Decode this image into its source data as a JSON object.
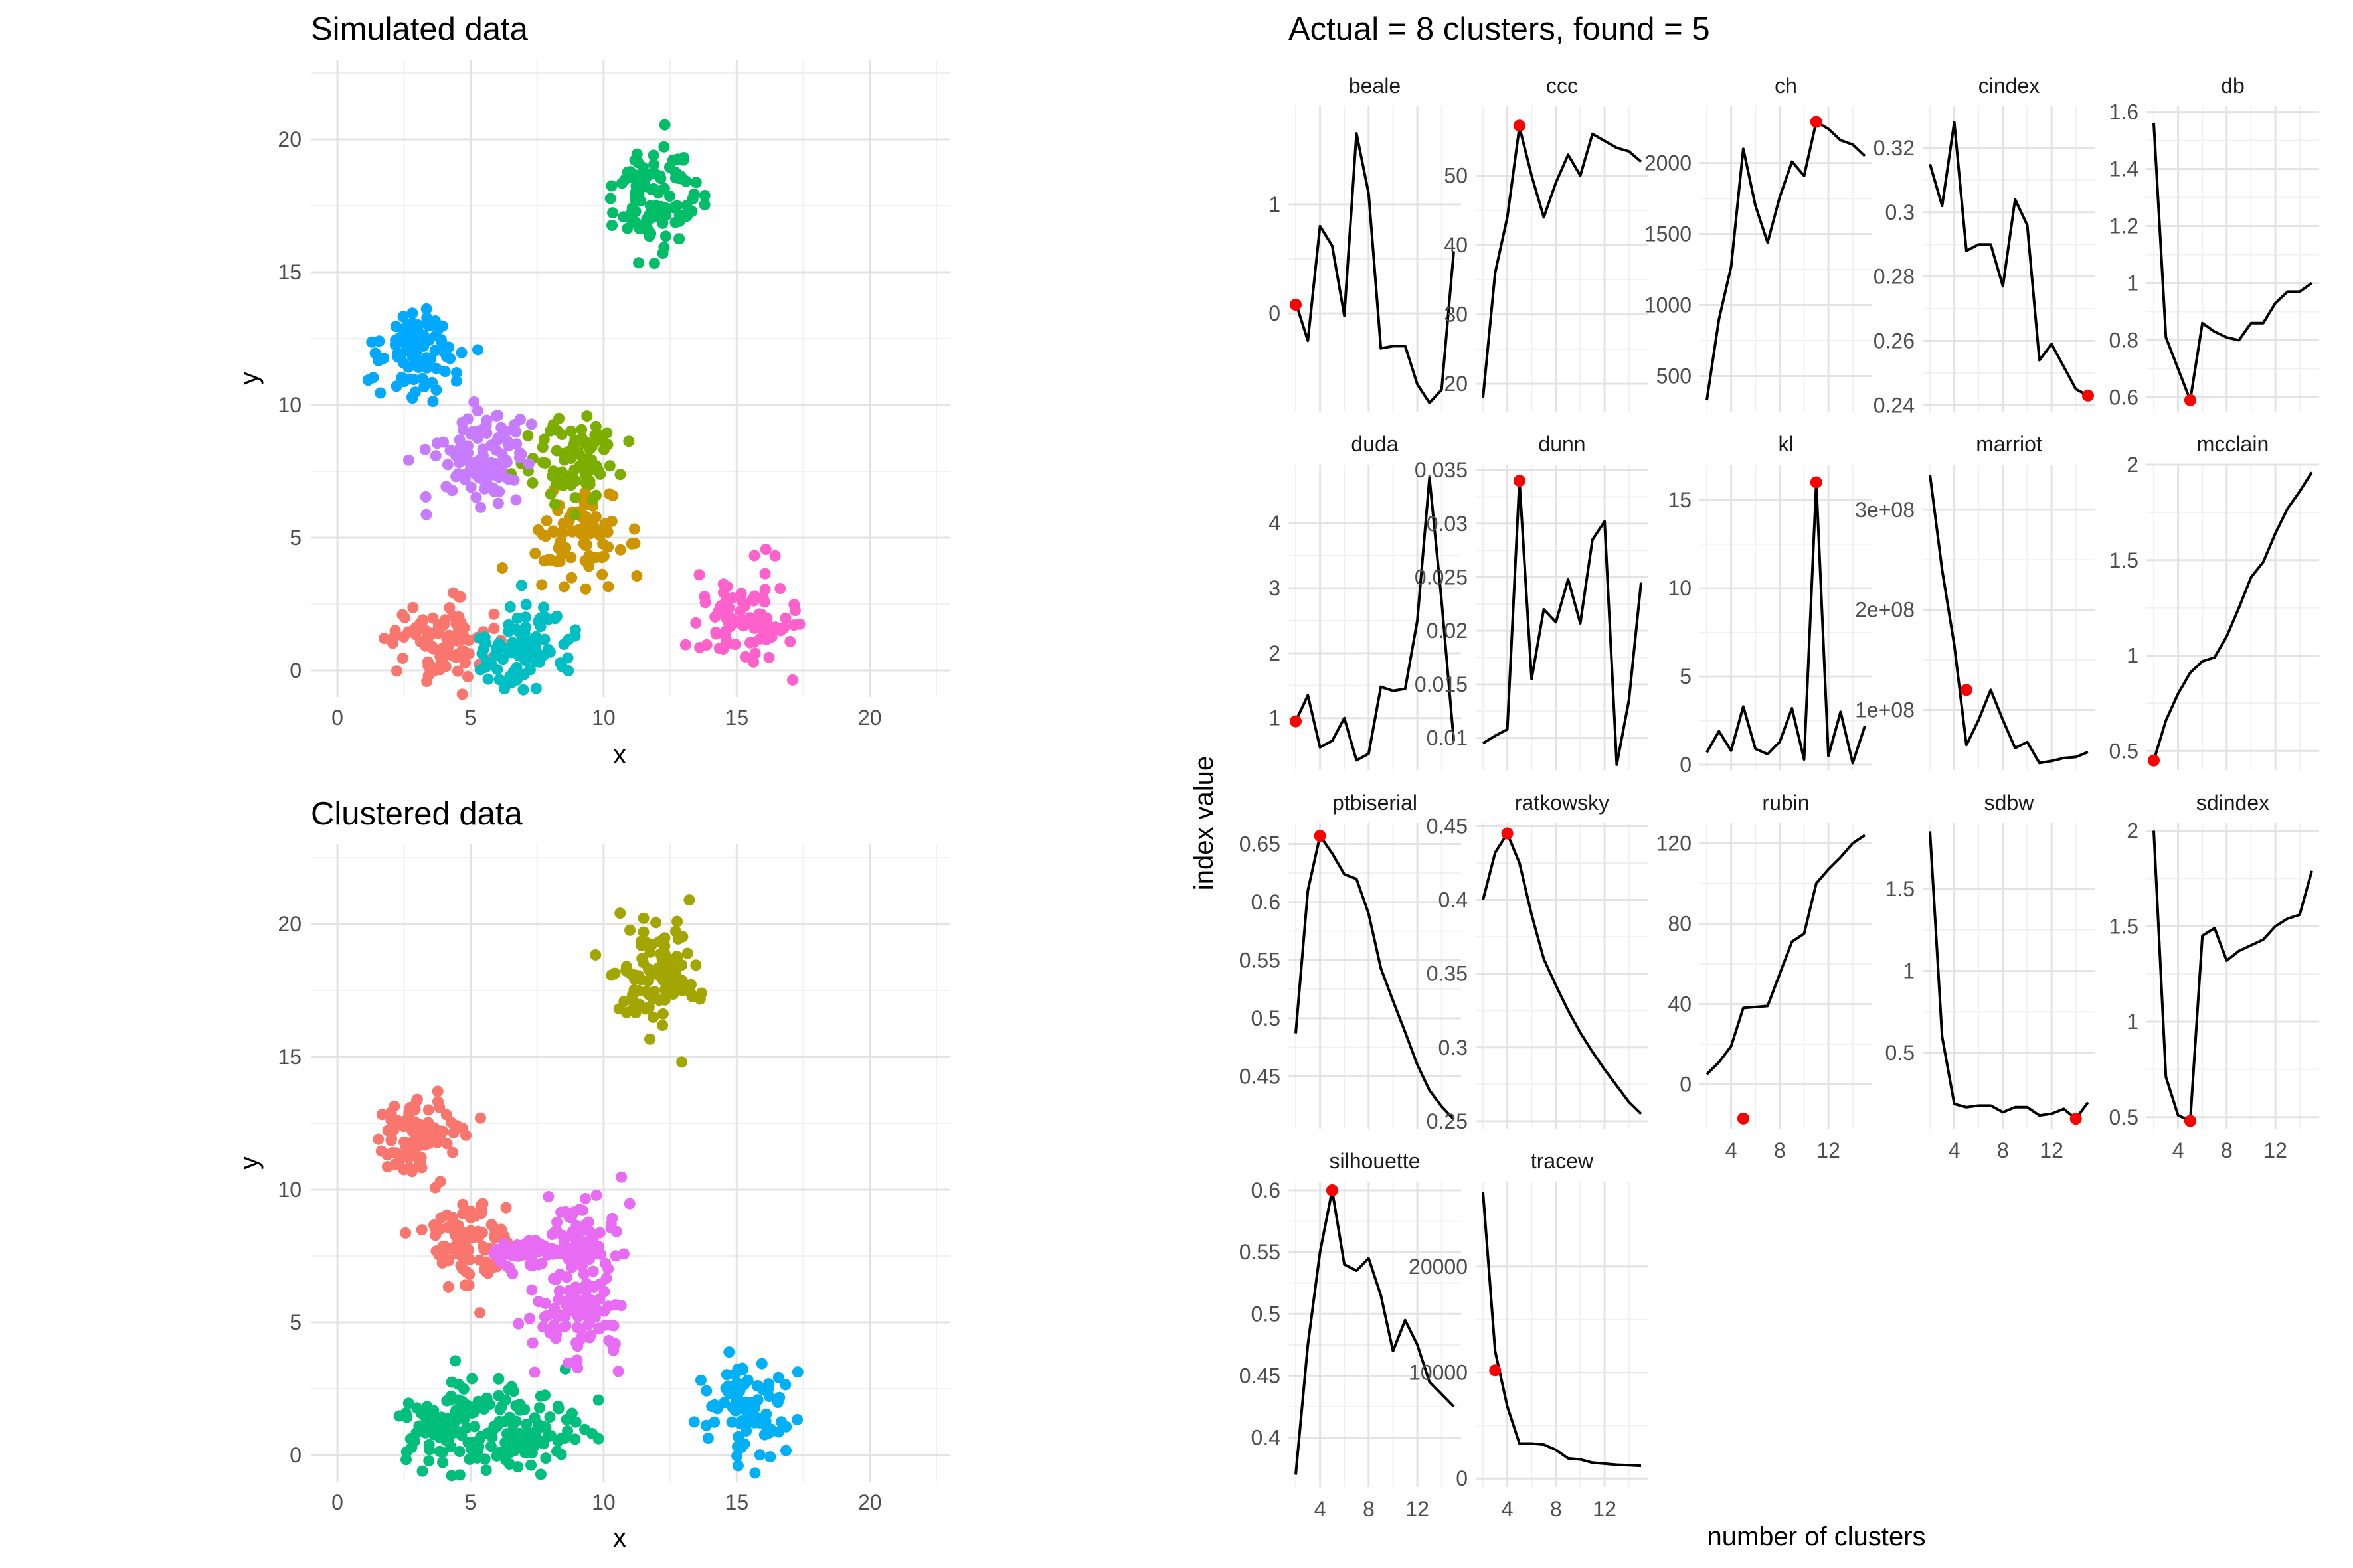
{
  "chart_data": [
    {
      "type": "scatter",
      "title": "Simulated data",
      "xlabel": "x",
      "ylabel": "y",
      "xlim": [
        -1,
        23
      ],
      "ylim": [
        -1,
        23
      ],
      "xticks": [
        0,
        5,
        10,
        15,
        20
      ],
      "yticks": [
        0,
        5,
        10,
        15,
        20
      ],
      "grid": true,
      "legend": "none",
      "clusters": [
        {
          "color": "#F8766D",
          "center": [
            3.8,
            1.1
          ],
          "spread": [
            0.9,
            0.8
          ],
          "n": 90
        },
        {
          "color": "#CD9600",
          "center": [
            9.0,
            5.0
          ],
          "spread": [
            0.9,
            0.8
          ],
          "n": 90
        },
        {
          "color": "#7CAE00",
          "center": [
            8.8,
            8.0
          ],
          "spread": [
            0.8,
            0.8
          ],
          "n": 90
        },
        {
          "color": "#00BE67",
          "center": [
            12.0,
            18.0
          ],
          "spread": [
            0.9,
            1.0
          ],
          "n": 100
        },
        {
          "color": "#00BFC4",
          "center": [
            7.0,
            0.9
          ],
          "spread": [
            0.9,
            0.8
          ],
          "n": 90
        },
        {
          "color": "#00A9FF",
          "center": [
            3.0,
            12.0
          ],
          "spread": [
            0.8,
            0.8
          ],
          "n": 90
        },
        {
          "color": "#C77CFF",
          "center": [
            5.5,
            8.0
          ],
          "spread": [
            0.9,
            0.8
          ],
          "n": 100
        },
        {
          "color": "#FF61CC",
          "center": [
            15.3,
            1.9
          ],
          "spread": [
            0.9,
            0.9
          ],
          "n": 90
        }
      ]
    },
    {
      "type": "scatter",
      "title": "Clustered data",
      "xlabel": "x",
      "ylabel": "y",
      "xlim": [
        -1,
        23
      ],
      "ylim": [
        -1,
        23
      ],
      "xticks": [
        0,
        5,
        10,
        15,
        20
      ],
      "yticks": [
        0,
        5,
        10,
        15,
        20
      ],
      "grid": true,
      "legend": "none",
      "clusters": [
        {
          "color": "#F8766D",
          "center": [
            3.0,
            12.0
          ],
          "spread": [
            0.8,
            0.8
          ],
          "n": 90
        },
        {
          "color": "#F8766D",
          "center": [
            5.0,
            8.0
          ],
          "spread": [
            0.9,
            0.8
          ],
          "n": 90
        },
        {
          "color": "#A3A500",
          "center": [
            12.0,
            18.0
          ],
          "spread": [
            0.9,
            1.0
          ],
          "n": 100
        },
        {
          "color": "#00BF7D",
          "center": [
            4.0,
            1.1
          ],
          "spread": [
            1.0,
            0.8
          ],
          "n": 95
        },
        {
          "color": "#00BF7D",
          "center": [
            7.0,
            0.9
          ],
          "spread": [
            1.0,
            0.8
          ],
          "n": 95
        },
        {
          "color": "#00B0F6",
          "center": [
            15.3,
            1.9
          ],
          "spread": [
            0.9,
            0.9
          ],
          "n": 90
        },
        {
          "color": "#E76BF3",
          "center": [
            9.0,
            8.0
          ],
          "spread": [
            0.8,
            0.8
          ],
          "n": 90
        },
        {
          "color": "#E76BF3",
          "center": [
            9.0,
            5.2
          ],
          "spread": [
            0.9,
            0.9
          ],
          "n": 90
        },
        {
          "color": "#E76BF3",
          "center": [
            6.8,
            7.6
          ],
          "spread": [
            0.5,
            0.4
          ],
          "n": 30
        }
      ]
    },
    {
      "type": "line",
      "title": "Actual = 8 clusters, found = 5",
      "xlabel": "number of clusters",
      "ylabel": "index value",
      "x": [
        2,
        3,
        4,
        5,
        6,
        7,
        8,
        9,
        10,
        11,
        12,
        13,
        14,
        15
      ],
      "xticks": [
        4,
        8,
        12
      ],
      "line_color": "#000000",
      "point_color": "#FF0000",
      "facets": [
        {
          "name": "beale",
          "y": [
            0.1,
            -0.25,
            0.8,
            0.62,
            -0.02,
            1.65,
            1.1,
            -0.32,
            -0.3,
            -0.3,
            -0.65,
            -0.82,
            -0.7,
            0.57
          ],
          "yticks": [
            0,
            1
          ],
          "ylim": [
            -0.9,
            1.9
          ],
          "marker": [
            2,
            0.08
          ]
        },
        {
          "name": "ccc",
          "y": [
            18,
            36,
            44,
            57,
            50,
            44,
            49,
            53,
            50,
            56,
            55,
            54,
            53.5,
            52
          ],
          "yticks": [
            20,
            30,
            40,
            50
          ],
          "ylim": [
            16,
            60
          ],
          "marker": [
            5,
            57.2
          ]
        },
        {
          "name": "ch",
          "y": [
            330,
            900,
            1270,
            2100,
            1700,
            1440,
            1760,
            2010,
            1910,
            2290,
            2240,
            2160,
            2130,
            2050
          ],
          "yticks": [
            500,
            1000,
            1500,
            2000
          ],
          "ylim": [
            250,
            2400
          ],
          "marker": [
            11,
            2290
          ]
        },
        {
          "name": "cindex",
          "y": [
            0.315,
            0.302,
            0.328,
            0.288,
            0.29,
            0.29,
            0.277,
            0.304,
            0.296,
            0.254,
            0.259,
            0.252,
            0.245,
            0.243
          ],
          "yticks": [
            0.24,
            0.26,
            0.28,
            0.3,
            0.32
          ],
          "ylim": [
            0.238,
            0.333
          ],
          "marker": [
            15,
            0.243
          ]
        },
        {
          "name": "db",
          "y": [
            1.56,
            0.81,
            0.7,
            0.59,
            0.86,
            0.83,
            0.81,
            0.8,
            0.86,
            0.86,
            0.93,
            0.97,
            0.97,
            1.0
          ],
          "yticks": [
            0.6,
            0.8,
            1.0,
            1.2,
            1.4,
            1.6
          ],
          "ylim": [
            0.55,
            1.62
          ],
          "marker": [
            5,
            0.59
          ]
        },
        {
          "name": "duda",
          "y": [
            0.95,
            1.35,
            0.55,
            0.65,
            1.0,
            0.35,
            0.45,
            1.48,
            1.42,
            1.45,
            2.5,
            4.7,
            2.8,
            0.65
          ],
          "yticks": [
            1,
            2,
            3,
            4
          ],
          "ylim": [
            0.2,
            4.9
          ],
          "marker": [
            2,
            0.95
          ]
        },
        {
          "name": "dunn",
          "y": [
            0.0095,
            0.0102,
            0.0108,
            0.034,
            0.0155,
            0.022,
            0.0208,
            0.0248,
            0.0207,
            0.0285,
            0.0302,
            0.0075,
            0.0135,
            0.0245
          ],
          "yticks": [
            0.01,
            0.015,
            0.02,
            0.025,
            0.03,
            0.035
          ],
          "ylim": [
            0.007,
            0.0355
          ],
          "marker": [
            5,
            0.034
          ]
        },
        {
          "name": "kl",
          "y": [
            0.7,
            1.9,
            0.8,
            3.3,
            0.9,
            0.6,
            1.3,
            3.2,
            0.3,
            16.0,
            0.5,
            3.0,
            0.1,
            2.2
          ],
          "yticks": [
            0,
            5,
            10,
            15
          ],
          "ylim": [
            -0.3,
            17
          ],
          "marker": [
            11,
            16.0
          ]
        },
        {
          "name": "marriot",
          "y": [
            335000000,
            240000000,
            165000000,
            65000000,
            90000000,
            120000000,
            90000000,
            62000000,
            68000000,
            47000000,
            49000000,
            52000000,
            53000000,
            58000000
          ],
          "yticks": [
            100000000,
            200000000,
            300000000
          ],
          "yticklabels": [
            "1e+08",
            "2e+08",
            "3e+08"
          ],
          "ylim": [
            40000000,
            345000000
          ],
          "marker": [
            5,
            120000000
          ]
        },
        {
          "name": "mcclain",
          "y": [
            0.45,
            0.66,
            0.8,
            0.91,
            0.97,
            0.99,
            1.1,
            1.25,
            1.41,
            1.49,
            1.64,
            1.77,
            1.86,
            1.96
          ],
          "yticks": [
            0.5,
            1.0,
            1.5,
            2.0
          ],
          "ylim": [
            0.4,
            2.0
          ],
          "marker": [
            2,
            0.45
          ]
        },
        {
          "name": "ptbiserial",
          "y": [
            0.487,
            0.61,
            0.657,
            0.642,
            0.624,
            0.62,
            0.59,
            0.543,
            0.515,
            0.488,
            0.46,
            0.438,
            0.424,
            0.413
          ],
          "yticks": [
            0.45,
            0.5,
            0.55,
            0.6,
            0.65
          ],
          "ylim": [
            0.405,
            0.668
          ],
          "marker": [
            4,
            0.657
          ]
        },
        {
          "name": "ratkowsky",
          "y": [
            0.4,
            0.432,
            0.445,
            0.425,
            0.39,
            0.36,
            0.342,
            0.325,
            0.31,
            0.297,
            0.285,
            0.274,
            0.263,
            0.255
          ],
          "yticks": [
            0.25,
            0.3,
            0.35,
            0.4,
            0.45
          ],
          "ylim": [
            0.245,
            0.452
          ],
          "marker": [
            4,
            0.445
          ]
        },
        {
          "name": "rubin",
          "y": [
            5,
            11,
            19,
            38,
            38.5,
            39,
            55,
            71,
            75,
            100,
            107,
            113,
            120,
            124
          ],
          "yticks": [
            0,
            40,
            80,
            120
          ],
          "ylim": [
            -22,
            130
          ],
          "marker": [
            5,
            -17
          ]
        },
        {
          "name": "sdbw",
          "y": [
            1.85,
            0.6,
            0.19,
            0.17,
            0.18,
            0.18,
            0.14,
            0.17,
            0.17,
            0.12,
            0.13,
            0.16,
            0.1,
            0.2
          ],
          "yticks": [
            0.5,
            1.0,
            1.5
          ],
          "ylim": [
            0.04,
            1.9
          ],
          "marker": [
            14,
            0.1
          ]
        },
        {
          "name": "sdindex",
          "y": [
            2.0,
            0.71,
            0.51,
            0.48,
            1.45,
            1.49,
            1.32,
            1.37,
            1.4,
            1.43,
            1.5,
            1.54,
            1.56,
            1.79
          ],
          "yticks": [
            0.5,
            1.0,
            1.5,
            2.0
          ],
          "ylim": [
            0.44,
            2.04
          ],
          "marker": [
            5,
            0.48
          ]
        },
        {
          "name": "silhouette",
          "y": [
            0.37,
            0.475,
            0.55,
            0.6,
            0.54,
            0.535,
            0.545,
            0.515,
            0.47,
            0.495,
            0.475,
            0.445,
            0.435,
            0.425
          ],
          "yticks": [
            0.4,
            0.45,
            0.5,
            0.55,
            0.6
          ],
          "ylim": [
            0.36,
            0.607
          ],
          "marker": [
            5,
            0.6
          ]
        },
        {
          "name": "tracew",
          "y": [
            27000,
            12000,
            6800,
            3300,
            3300,
            3200,
            2700,
            1900,
            1800,
            1500,
            1400,
            1300,
            1250,
            1200
          ],
          "yticks": [
            0,
            10000,
            20000
          ],
          "ylim": [
            -800,
            28000
          ],
          "marker": [
            3,
            10200
          ]
        }
      ]
    }
  ]
}
